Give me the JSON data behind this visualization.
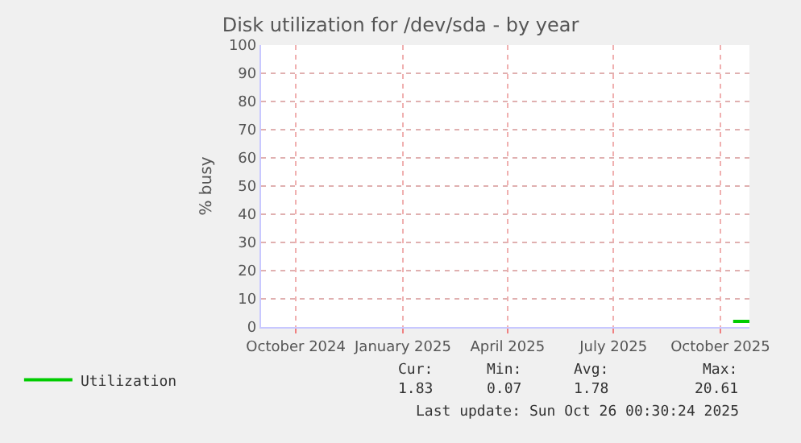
{
  "chart_data": {
    "type": "line",
    "title": "Disk utilization for /dev/sda - by year",
    "ylabel": "% busy",
    "series": [
      {
        "name": "Utilization",
        "color": "#00cc00",
        "x": [
          "2025-10-12",
          "2025-10-26"
        ],
        "values": [
          2,
          2
        ]
      }
    ],
    "xlim": [
      "2024-09-01",
      "2025-10-26"
    ],
    "xticks": [
      {
        "value": "2024-10-01",
        "label": "October 2024"
      },
      {
        "value": "2025-01-01",
        "label": "January 2025"
      },
      {
        "value": "2025-04-01",
        "label": "April 2025"
      },
      {
        "value": "2025-07-01",
        "label": "July 2025"
      },
      {
        "value": "2025-10-01",
        "label": "October 2025"
      }
    ],
    "ylim": [
      0,
      100
    ],
    "yticks": [
      0,
      10,
      20,
      30,
      40,
      50,
      60,
      70,
      80,
      90,
      100
    ],
    "grid": true,
    "legend": "bottom left",
    "marker": "none",
    "line_style": "solid",
    "annotations": [
      "Cur:",
      "Min:",
      "Avg:",
      "Max:",
      "1.83",
      "0.07",
      "1.78",
      "20.61",
      "Last update: Sun Oct 26 00:30:24 2025"
    ]
  }
}
